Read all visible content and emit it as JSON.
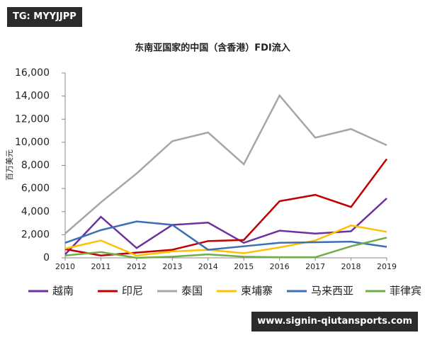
{
  "watermarks": [
    "TG: MYYJJPP",
    "www.signin-qiutansports.com"
  ],
  "chart_data": {
    "type": "line",
    "title": "东南亚国家的中国（含香港）FDI流入",
    "y_label": "百万美元",
    "categories": [
      "2010",
      "2011",
      "2012",
      "2013",
      "2014",
      "2015",
      "2016",
      "2017",
      "2018",
      "2019"
    ],
    "ylim": [
      0,
      16000
    ],
    "yticks": [
      0,
      {
        "value": 2000,
        "label": "2,000"
      },
      {
        "value": 4000,
        "label": "4,000"
      },
      {
        "value": 6000,
        "label": "6,000"
      },
      {
        "value": 8000,
        "label": "8,000"
      },
      {
        "value": 10000,
        "label": "10,000"
      },
      {
        "value": 12000,
        "label": "12,000"
      },
      {
        "value": 14000,
        "label": "14,000"
      },
      {
        "value": 16000,
        "label": "16,000"
      }
    ],
    "grid": false,
    "legend": "bottom",
    "series": [
      {
        "name": "越南",
        "color": "#7030a0",
        "values": [
          300,
          3550,
          850,
          2850,
          3050,
          1300,
          2350,
          2100,
          2300,
          5150
        ]
      },
      {
        "name": "印尼",
        "color": "#c00000",
        "values": [
          750,
          200,
          450,
          700,
          1450,
          1550,
          4900,
          5450,
          4400,
          8550
        ]
      },
      {
        "name": "泰国",
        "color": "#a6a6a6",
        "values": [
          2100,
          4800,
          7300,
          10100,
          10850,
          8100,
          14050,
          10400,
          11150,
          9750
        ]
      },
      {
        "name": "柬埔寨",
        "color": "#ffc000",
        "values": [
          800,
          1500,
          200,
          550,
          700,
          400,
          900,
          1500,
          2800,
          2250
        ]
      },
      {
        "name": "马来西亚",
        "color": "#3d6fb5",
        "values": [
          1300,
          2400,
          3150,
          2850,
          700,
          1000,
          1300,
          1350,
          1400,
          950
        ]
      },
      {
        "name": "菲律宾",
        "color": "#70ad47",
        "values": [
          200,
          500,
          0,
          100,
          300,
          100,
          50,
          50,
          1000,
          1750
        ]
      }
    ]
  }
}
